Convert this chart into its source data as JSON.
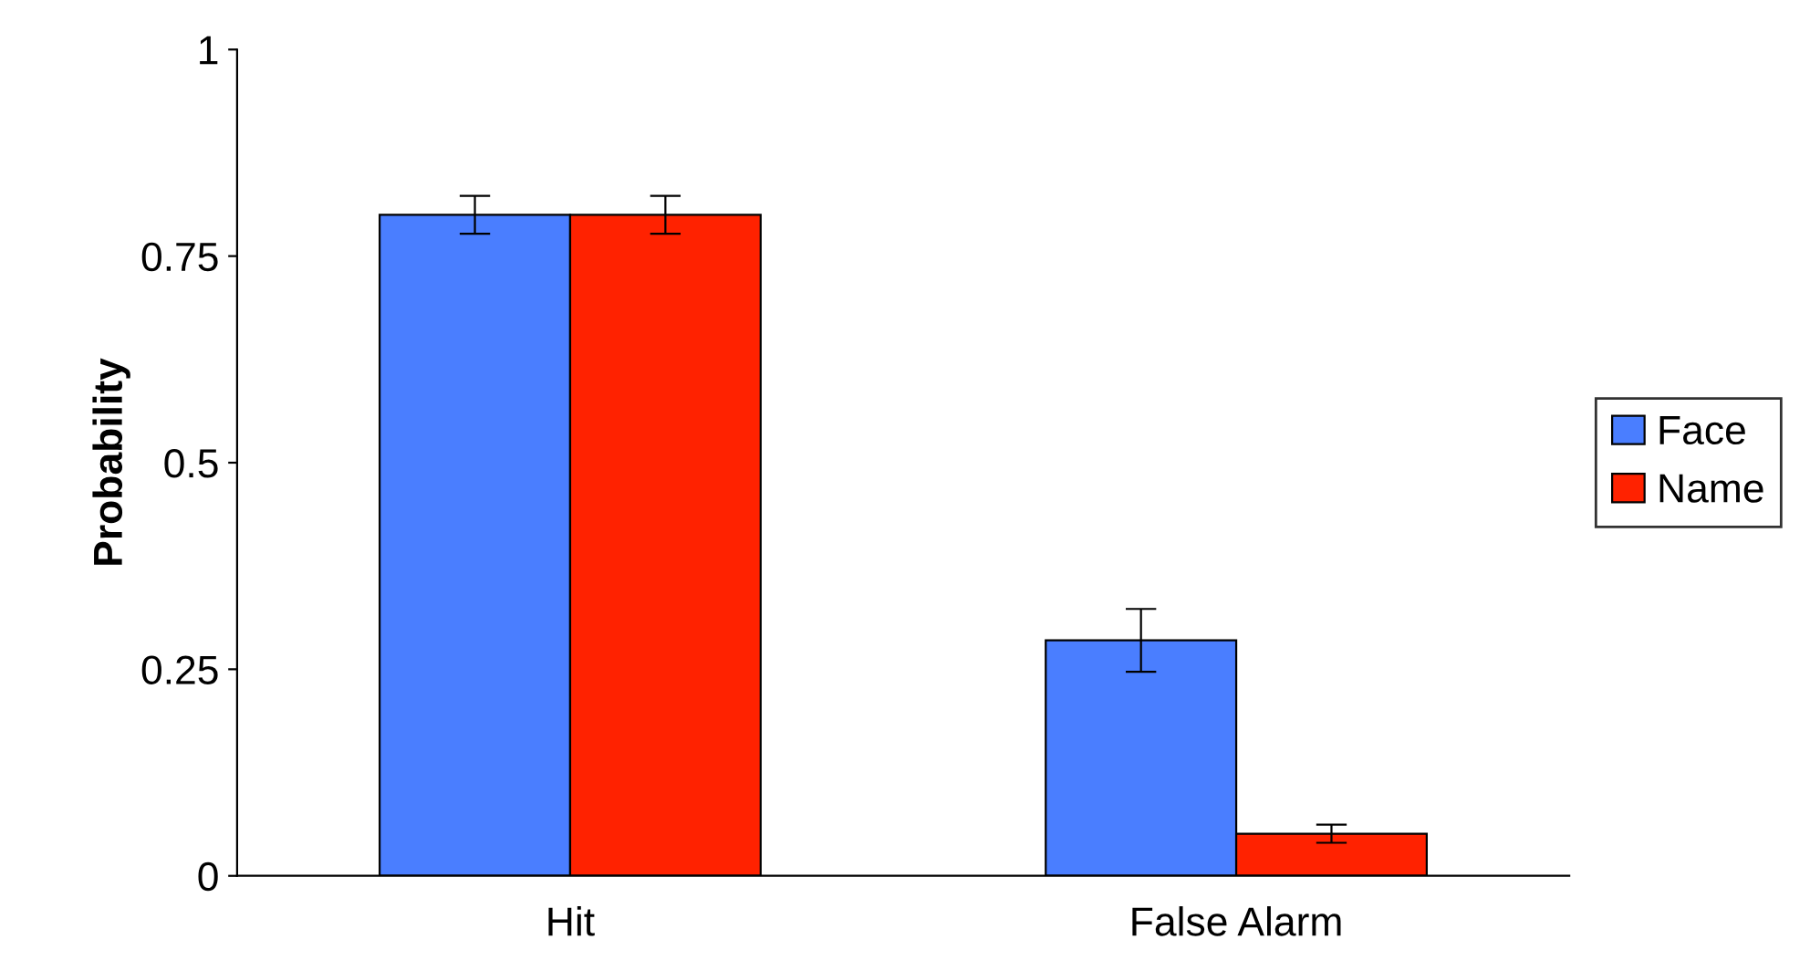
{
  "chart_data": {
    "type": "bar",
    "ylabel": "Probability",
    "categories": [
      "Hit",
      "False Alarm"
    ],
    "series": [
      {
        "name": "Face",
        "color": "#4a7eff",
        "values": [
          0.8,
          0.285
        ],
        "errors": [
          0.023,
          0.038
        ]
      },
      {
        "name": "Name",
        "color": "#ff2200",
        "values": [
          0.8,
          0.051
        ],
        "errors": [
          0.023,
          0.011
        ]
      }
    ],
    "ylim": [
      0,
      1
    ],
    "yticks": [
      0,
      0.25,
      0.5,
      0.75,
      1
    ],
    "grid": false,
    "legend": "right"
  }
}
